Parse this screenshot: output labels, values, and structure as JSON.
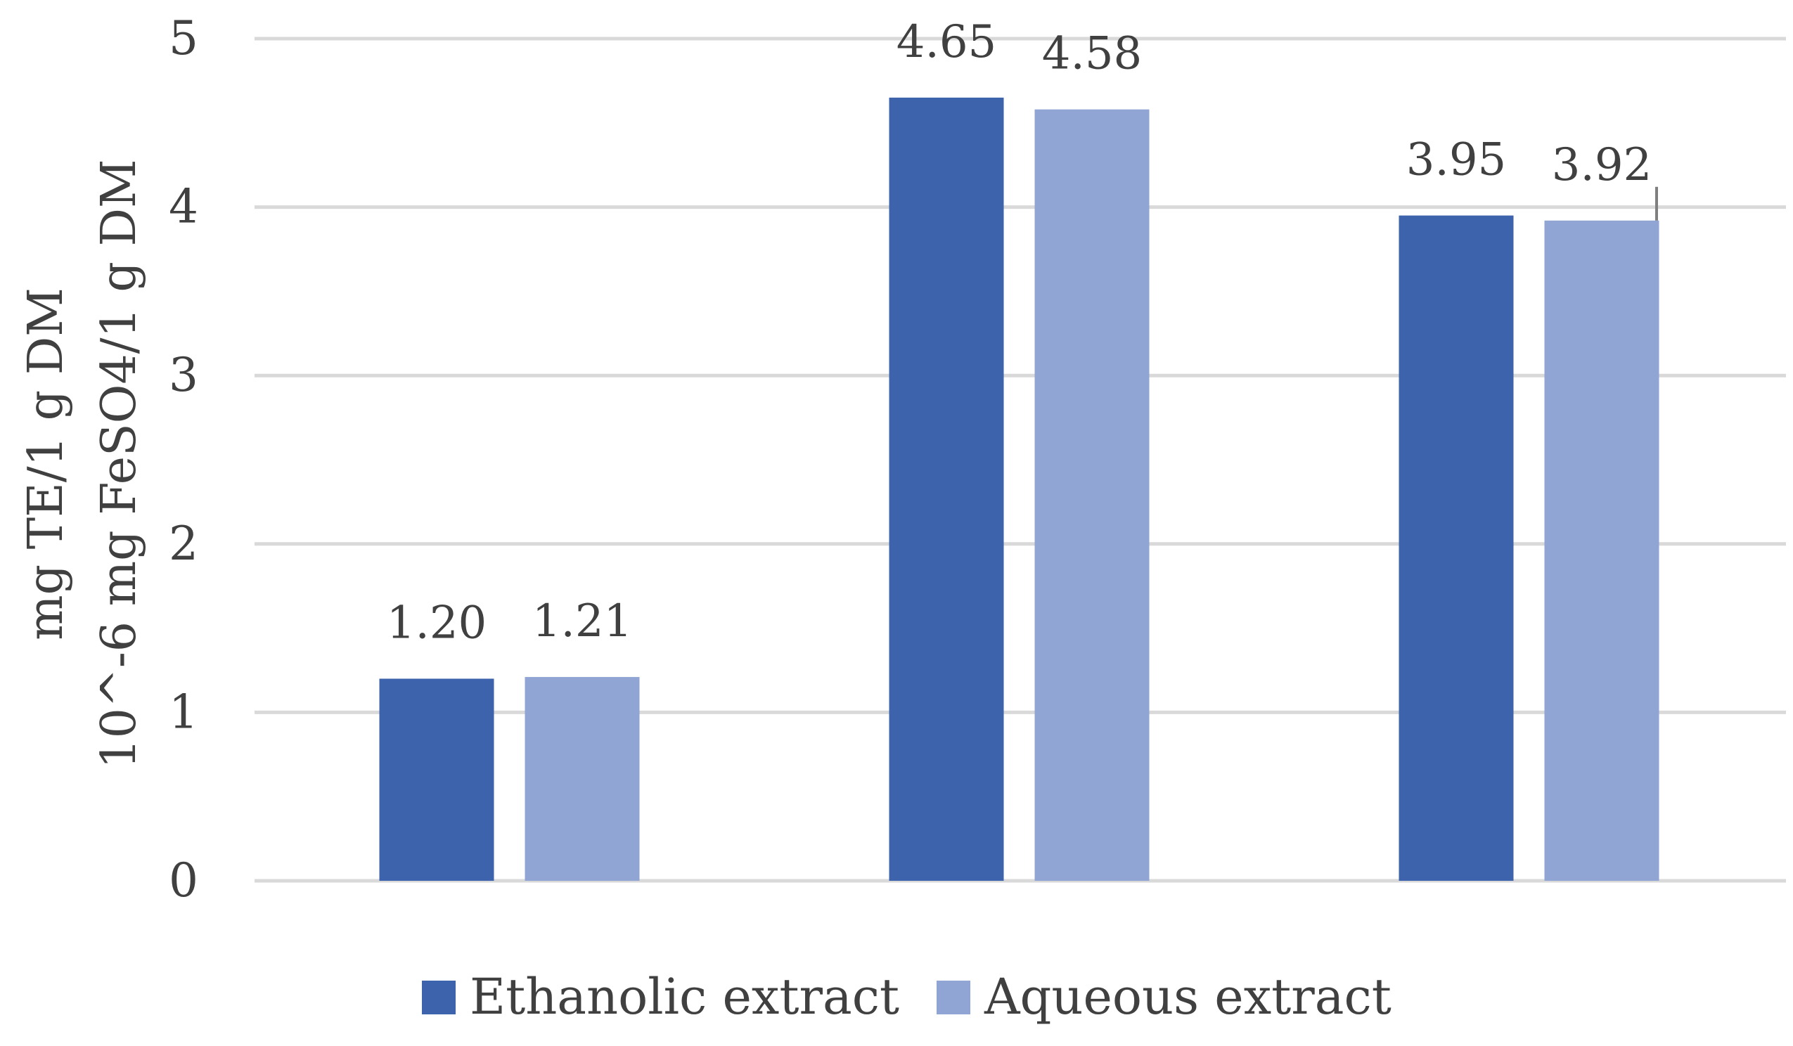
{
  "chart_data": {
    "type": "bar",
    "title": "",
    "categories": [
      "",
      "",
      ""
    ],
    "series": [
      {
        "name": "Ethanolic extract",
        "color": "#3C63AB",
        "values": [
          1.2,
          4.65,
          3.95
        ],
        "labels": [
          "1.20",
          "4.65",
          "3.95"
        ]
      },
      {
        "name": "Aqueous extract",
        "color": "#90A5D4",
        "values": [
          1.21,
          4.58,
          3.92
        ],
        "labels": [
          "1.21",
          "4.58",
          "3.92"
        ]
      }
    ],
    "ylabel_lines": [
      "mg TE/1 g DM",
      "10^-6 mg FeSO4/1 g DM"
    ],
    "xlabel": "",
    "ylim": [
      0,
      5
    ],
    "yticks": [
      "0",
      "1",
      "2",
      "3",
      "4",
      "5"
    ],
    "grid": true,
    "gridline_color": "#D9D9D9",
    "legend_position": "bottom"
  }
}
